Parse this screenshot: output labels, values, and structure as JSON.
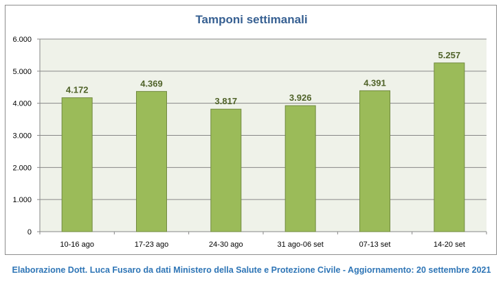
{
  "chart_data": {
    "type": "bar",
    "title": "Tamponi settimanali",
    "categories": [
      "10-16 ago",
      "17-23 ago",
      "24-30 ago",
      "31 ago-06 set",
      "07-13 set",
      "14-20 set"
    ],
    "values": [
      4172,
      4369,
      3817,
      3926,
      4391,
      5257
    ],
    "value_labels": [
      "4.172",
      "4.369",
      "3.817",
      "3.926",
      "4.391",
      "5.257"
    ],
    "ylim": [
      0,
      6000
    ],
    "yticks": [
      0,
      1000,
      2000,
      3000,
      4000,
      5000,
      6000
    ],
    "ytick_labels": [
      "0",
      "1.000",
      "2.000",
      "3.000",
      "4.000",
      "5.000",
      "6.000"
    ],
    "xlabel": "",
    "ylabel": "",
    "grid": true,
    "colors": {
      "bar": "#9bbb59",
      "bar_border": "#71893f",
      "label": "#4f6228",
      "plot_bg": "#eff2e9",
      "grid": "#868686"
    }
  },
  "footer": "Elaborazione Dott. Luca Fusaro da dati Ministero della Salute e Protezione Civile - Aggiornamento: 20 settembre 2021"
}
